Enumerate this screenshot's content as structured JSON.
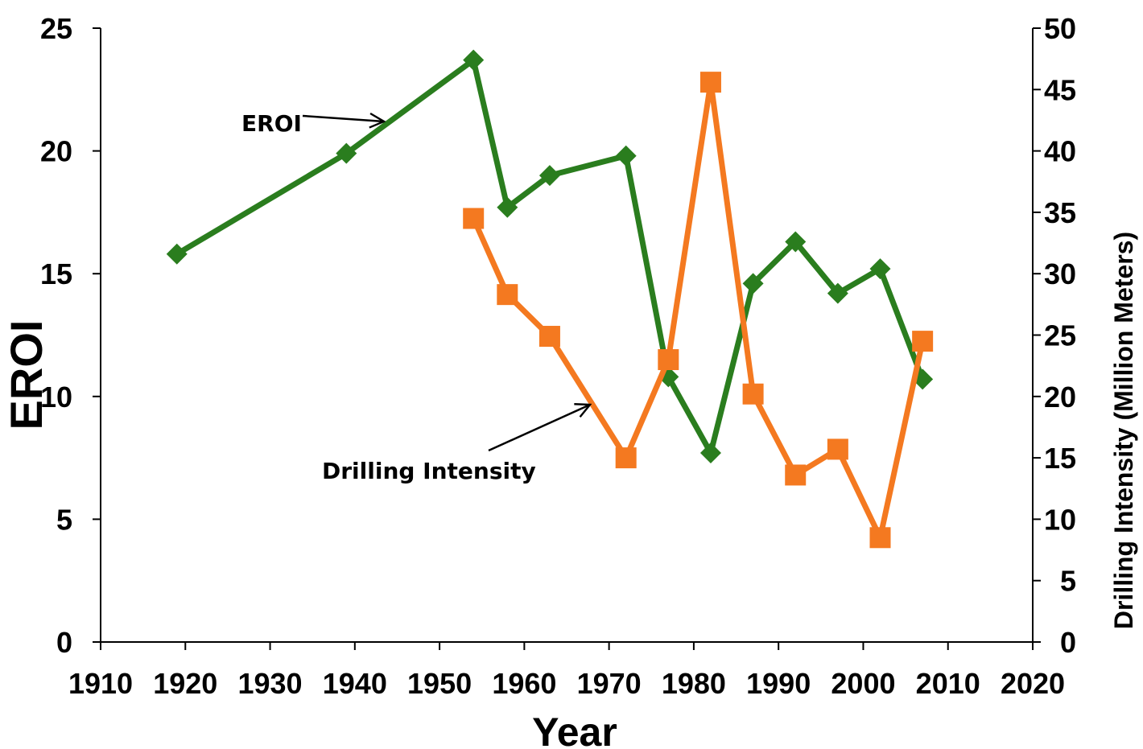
{
  "chart_data": {
    "type": "line",
    "title": "",
    "xlabel": "Year",
    "ylabel": "EROI",
    "y2label": "Drilling Intensity (Million Meters)",
    "xlim": [
      1910,
      2020
    ],
    "ylim": [
      0,
      25
    ],
    "y2lim": [
      0,
      50
    ],
    "xticks": [
      "1910",
      "1920",
      "1930",
      "1940",
      "1950",
      "1960",
      "1970",
      "1980",
      "1990",
      "2000",
      "2010",
      "2020"
    ],
    "yticks": [
      "0",
      "5",
      "10",
      "15",
      "20",
      "25"
    ],
    "y2ticks": [
      "0",
      "5",
      "10",
      "15",
      "20",
      "25",
      "30",
      "35",
      "40",
      "45",
      "50"
    ],
    "grid": false,
    "series": [
      {
        "name": "EROI",
        "axis": "left",
        "color": "#2a7d1e",
        "marker": "diamond",
        "points": [
          [
            1919,
            15.8
          ],
          [
            1939,
            19.9
          ],
          [
            1954,
            23.7
          ],
          [
            1958,
            17.7
          ],
          [
            1963,
            19.0
          ],
          [
            1972,
            19.8
          ],
          [
            1977,
            10.8
          ],
          [
            1982,
            7.7
          ],
          [
            1987,
            14.6
          ],
          [
            1992,
            16.3
          ],
          [
            1997,
            14.2
          ],
          [
            2002,
            15.2
          ],
          [
            2007,
            10.7
          ]
        ]
      },
      {
        "name": "Drilling Intensity",
        "axis": "right",
        "color": "#f47920",
        "marker": "square",
        "points": [
          [
            1954,
            34.5
          ],
          [
            1958,
            28.3
          ],
          [
            1963,
            24.9
          ],
          [
            1972,
            15.0
          ],
          [
            1977,
            23.0
          ],
          [
            1982,
            45.6
          ],
          [
            1987,
            20.2
          ],
          [
            1992,
            13.6
          ],
          [
            1997,
            15.7
          ],
          [
            2002,
            8.5
          ],
          [
            2007,
            24.5
          ]
        ]
      }
    ],
    "annotations": [
      {
        "text": "EROI",
        "target_series": "EROI"
      },
      {
        "text": "Drilling Intensity",
        "target_series": "Drilling Intensity"
      }
    ]
  }
}
